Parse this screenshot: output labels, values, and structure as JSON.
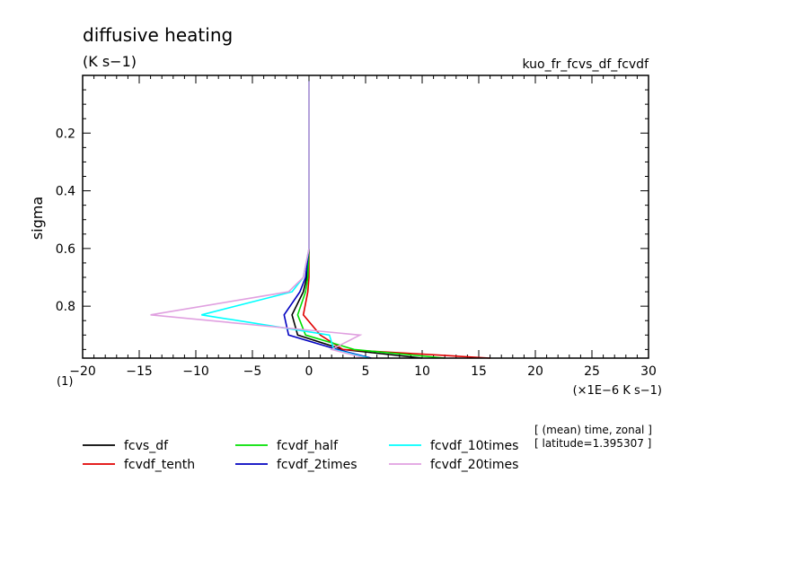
{
  "chart_data": {
    "type": "line",
    "title": "diffusive heating",
    "units_label": "(K s−1)",
    "experiment_label": "kuo_fr_fcvs_df_fcvdf",
    "ylabel": "sigma",
    "xlabel": "(×1E−6 K s−1)",
    "x_axis_multiplier": "(1)",
    "xlim": [
      -20,
      30
    ],
    "ylim": [
      0.0,
      0.98
    ],
    "y_inverted": true,
    "xticks": [
      -20,
      -15,
      -10,
      -5,
      0,
      5,
      10,
      15,
      20,
      25,
      30
    ],
    "xtick_labels": [
      "−20",
      "−15",
      "−10",
      "−5",
      "0",
      "5",
      "10",
      "15",
      "20",
      "25",
      "30"
    ],
    "yticks": [
      0.2,
      0.4,
      0.6,
      0.8
    ],
    "ytick_labels": [
      "0.2",
      "0.4",
      "0.6",
      "0.8"
    ],
    "info_lines": [
      "[ (mean) time, zonal ]",
      "[ latitude=1.395307 ]"
    ],
    "y": [
      0.02,
      0.06,
      0.12,
      0.2,
      0.3,
      0.4,
      0.5,
      0.6,
      0.7,
      0.75,
      0.83,
      0.9,
      0.95,
      0.98
    ],
    "series": [
      {
        "name": "fcvs_df",
        "color": "#000000",
        "x": [
          0,
          0,
          0,
          0,
          0,
          0,
          0,
          0,
          -0.2,
          -0.5,
          -1.5,
          -1.0,
          3.0,
          10.0
        ]
      },
      {
        "name": "fcvdf_tenth",
        "color": "#e00000",
        "x": [
          0,
          0,
          0,
          0,
          0,
          0,
          0,
          0,
          0.0,
          -0.1,
          -0.5,
          1.0,
          3.0,
          16.0
        ]
      },
      {
        "name": "fcvdf_half",
        "color": "#00e000",
        "x": [
          0,
          0,
          0,
          0,
          0,
          0,
          0,
          0,
          -0.1,
          -0.3,
          -1.0,
          -0.3,
          4.0,
          12.0
        ]
      },
      {
        "name": "fcvdf_2times",
        "color": "#0000c0",
        "x": [
          0,
          0,
          0,
          0,
          0,
          0,
          0,
          0,
          -0.3,
          -0.8,
          -2.2,
          -1.8,
          2.5,
          5.5
        ]
      },
      {
        "name": "fcvdf_10times",
        "color": "#00ffff",
        "x": [
          0,
          0,
          0,
          0,
          0,
          0,
          0,
          0,
          -0.5,
          -1.5,
          -9.5,
          1.8,
          2.2,
          5.3
        ]
      },
      {
        "name": "fcvdf_20times",
        "color": "#e0a0e0",
        "x": [
          0,
          0,
          0,
          0,
          0,
          0,
          0,
          0,
          -0.5,
          -1.8,
          -14.0,
          4.5,
          2.0,
          5.0
        ]
      }
    ]
  }
}
